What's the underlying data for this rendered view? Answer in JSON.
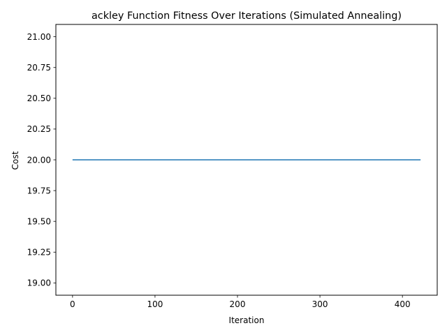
{
  "chart_data": {
    "type": "line",
    "title": "ackley Function Fitness Over Iterations (Simulated Annealing)",
    "xlabel": "Iteration",
    "ylabel": "Cost",
    "xlim": [
      -20.2,
      442.2
    ],
    "ylim": [
      18.9,
      21.1
    ],
    "x_ticks": [
      0,
      100,
      200,
      300,
      400
    ],
    "x_tick_labels": [
      "0",
      "100",
      "200",
      "300",
      "400"
    ],
    "y_ticks": [
      19.0,
      19.25,
      19.5,
      19.75,
      20.0,
      20.25,
      20.5,
      20.75,
      21.0
    ],
    "y_tick_labels": [
      "19.00",
      "19.25",
      "19.50",
      "19.75",
      "20.00",
      "20.25",
      "20.50",
      "20.75",
      "21.00"
    ],
    "grid": false,
    "series": [
      {
        "color": "#1f77b4",
        "x": [
          0,
          422
        ],
        "y": [
          20.0,
          20.0
        ]
      }
    ]
  }
}
